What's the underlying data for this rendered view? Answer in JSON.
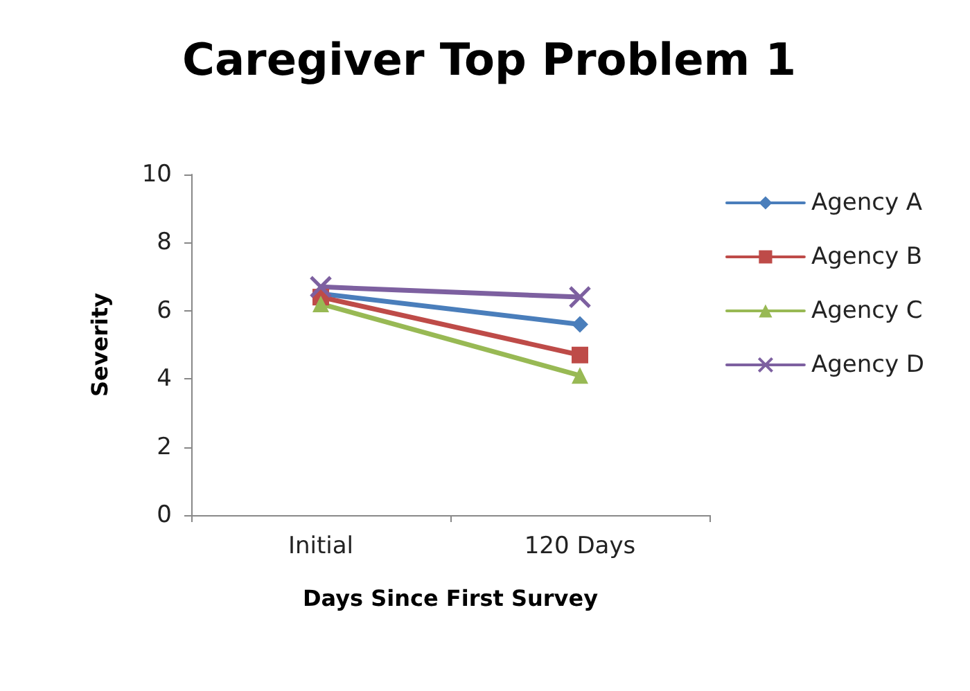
{
  "chart_data": {
    "type": "line",
    "title": "Caregiver Top Problem 1",
    "xlabel": "Days Since First Survey",
    "ylabel": "Severity",
    "categories": [
      "Initial",
      "120 Days"
    ],
    "series": [
      {
        "name": "Agency A",
        "color": "#4a7ebb",
        "values": [
          6.5,
          5.6
        ],
        "marker": "diamond"
      },
      {
        "name": "Agency B",
        "color": "#be4b48",
        "values": [
          6.4,
          4.7
        ],
        "marker": "square"
      },
      {
        "name": "Agency C",
        "color": "#98b954",
        "values": [
          6.2,
          4.1
        ],
        "marker": "triangle"
      },
      {
        "name": "Agency D",
        "color": "#7d60a0",
        "values": [
          6.7,
          6.4
        ],
        "marker": "cross"
      }
    ],
    "ylim": [
      0,
      10
    ],
    "yticks": [
      0,
      2,
      4,
      6,
      8,
      10
    ],
    "grid": false,
    "legend": "right"
  }
}
